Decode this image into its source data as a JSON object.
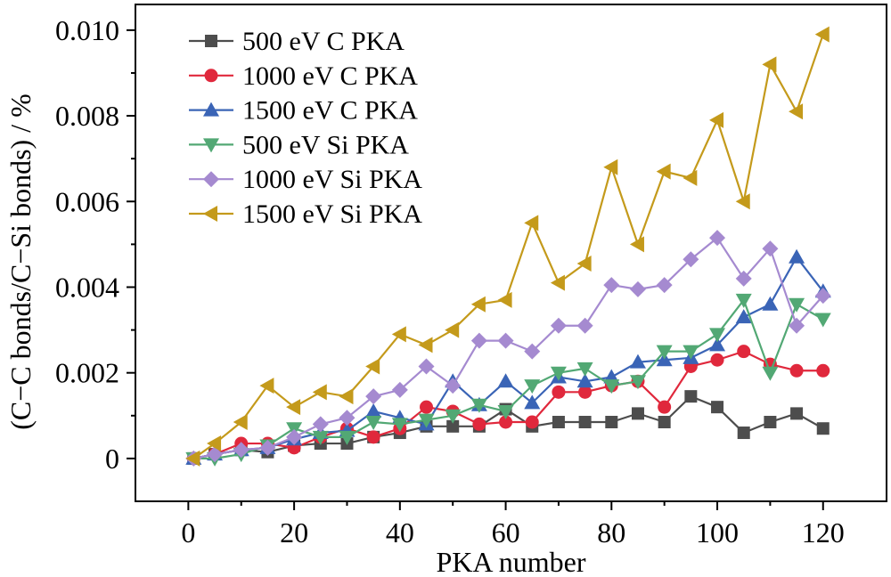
{
  "chart_data": {
    "type": "line",
    "title": "",
    "xlabel": "PKA number",
    "ylabel": "(C−C bonds/C−Si bonds) / %",
    "xlim": [
      -10,
      132
    ],
    "ylim": [
      -0.001,
      0.0106
    ],
    "x_ticks": [
      0,
      20,
      40,
      60,
      80,
      100,
      120
    ],
    "y_ticks": [
      0,
      0.002,
      0.004,
      0.006,
      0.008,
      0.01
    ],
    "x_tick_labels": [
      "0",
      "20",
      "40",
      "60",
      "80",
      "100",
      "120"
    ],
    "y_tick_labels": [
      "0",
      "0.002",
      "0.004",
      "0.006",
      "0.008",
      "0.010"
    ],
    "grid": false,
    "legend_position": "top-left",
    "x": [
      1,
      5,
      10,
      15,
      20,
      25,
      30,
      35,
      40,
      45,
      50,
      55,
      60,
      65,
      70,
      75,
      80,
      85,
      90,
      95,
      100,
      105,
      110,
      115,
      120
    ],
    "series": [
      {
        "name": "500 eV C PKA",
        "color": "#4d4d4d",
        "marker": "square",
        "values": [
          0.0,
          0.0001,
          0.0002,
          0.00015,
          0.0003,
          0.00035,
          0.00035,
          0.0005,
          0.0006,
          0.00075,
          0.00075,
          0.00075,
          0.00115,
          0.00075,
          0.00085,
          0.00085,
          0.00085,
          0.00105,
          0.00085,
          0.00145,
          0.0012,
          0.0006,
          0.00085,
          0.00105,
          0.0007
        ]
      },
      {
        "name": "1000 eV C PKA",
        "color": "#e0283c",
        "marker": "circle",
        "values": [
          0.0,
          0.0001,
          0.00035,
          0.00035,
          0.00025,
          0.0005,
          0.0007,
          0.0005,
          0.0007,
          0.0012,
          0.0011,
          0.0008,
          0.00085,
          0.00085,
          0.00155,
          0.00155,
          0.0017,
          0.0018,
          0.0012,
          0.00215,
          0.0023,
          0.0025,
          0.0022,
          0.00205,
          0.00205
        ]
      },
      {
        "name": "1500 eV C PKA",
        "color": "#3a64b6",
        "marker": "triangle-up",
        "values": [
          0.0,
          0.0001,
          0.0002,
          0.00025,
          0.00045,
          0.0006,
          0.00065,
          0.0011,
          0.00095,
          0.0008,
          0.0018,
          0.00125,
          0.0018,
          0.0013,
          0.0019,
          0.0018,
          0.0019,
          0.00225,
          0.0023,
          0.00235,
          0.00265,
          0.0033,
          0.0036,
          0.0047,
          0.0039
        ]
      },
      {
        "name": "500 eV Si PKA",
        "color": "#52a874",
        "marker": "triangle-down",
        "values": [
          0.0,
          0.0,
          0.0001,
          0.0003,
          0.0007,
          0.0005,
          0.0005,
          0.00085,
          0.0008,
          0.0009,
          0.001,
          0.00125,
          0.0011,
          0.0017,
          0.002,
          0.0021,
          0.0017,
          0.0018,
          0.0025,
          0.0025,
          0.0029,
          0.0037,
          0.002,
          0.0036,
          0.00325
        ]
      },
      {
        "name": "1000 eV Si PKA",
        "color": "#a58ad0",
        "marker": "diamond",
        "values": [
          0.0,
          0.0001,
          0.0002,
          0.00025,
          0.0005,
          0.0008,
          0.00095,
          0.00145,
          0.0016,
          0.00215,
          0.0017,
          0.00275,
          0.00275,
          0.0025,
          0.0031,
          0.0031,
          0.00405,
          0.00395,
          0.00405,
          0.00465,
          0.00515,
          0.0042,
          0.0049,
          0.0031,
          0.0038
        ]
      },
      {
        "name": "1500 eV Si PKA",
        "color": "#c49a1b",
        "marker": "triangle-left",
        "values": [
          0.0,
          0.00035,
          0.00085,
          0.0017,
          0.0012,
          0.00155,
          0.00145,
          0.00215,
          0.0029,
          0.00265,
          0.003,
          0.0036,
          0.0037,
          0.0055,
          0.0041,
          0.00455,
          0.0068,
          0.005,
          0.0067,
          0.00655,
          0.0079,
          0.006,
          0.0092,
          0.0081,
          0.0099
        ]
      }
    ]
  }
}
